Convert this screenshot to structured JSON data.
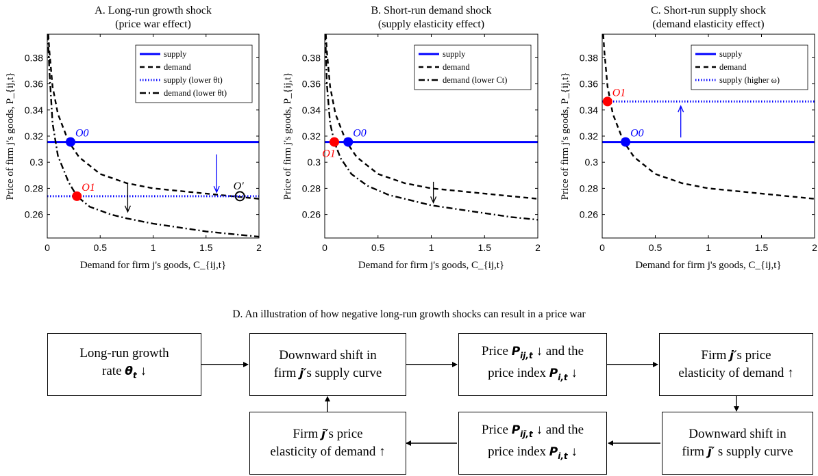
{
  "chart_data": [
    {
      "type": "line",
      "title": "A. Long-run growth shock",
      "subtitle": "(price war effect)",
      "xlabel": "Demand for firm j's goods, C_{ij,t}",
      "ylabel": "Price of firm j's goods, P_{ij,t}",
      "xlim": [
        0,
        2
      ],
      "ylim": [
        0.242,
        0.398
      ],
      "xticks": [
        "0",
        "0.5",
        "1",
        "1.5",
        "2"
      ],
      "xtick_values": [
        0,
        0.5,
        1,
        1.5,
        2
      ],
      "yticks": [
        "0.26",
        "0.28",
        "0.3",
        "0.32",
        "0.34",
        "0.36",
        "0.38"
      ],
      "ytick_values": [
        0.26,
        0.28,
        0.3,
        0.32,
        0.34,
        0.36,
        0.38
      ],
      "grid": false,
      "legend_position": "top-right",
      "series": [
        {
          "name": "supply",
          "style": "solid",
          "color": "#0000ff",
          "x": [
            0,
            2
          ],
          "y": [
            0.3155,
            0.3155
          ]
        },
        {
          "name": "demand",
          "style": "dashed",
          "color": "#000000",
          "x": [
            0.01,
            0.02,
            0.05,
            0.1,
            0.2,
            0.3,
            0.5,
            0.75,
            1.0,
            1.25,
            1.5,
            1.75,
            2.0
          ],
          "y": [
            0.398,
            0.385,
            0.358,
            0.337,
            0.316,
            0.304,
            0.291,
            0.284,
            0.28,
            0.278,
            0.276,
            0.274,
            0.272
          ]
        },
        {
          "name": "supply (lower θt)",
          "style": "dotted",
          "color": "#0000ff",
          "x": [
            0,
            2
          ],
          "y": [
            0.274,
            0.274
          ]
        },
        {
          "name": "demand (lower θt)",
          "style": "dashdot",
          "color": "#000000",
          "x": [
            0.005,
            0.02,
            0.05,
            0.1,
            0.2,
            0.28,
            0.4,
            0.6,
            0.75,
            1.0,
            1.25,
            1.5,
            1.75,
            2.0
          ],
          "y": [
            0.398,
            0.37,
            0.33,
            0.305,
            0.285,
            0.274,
            0.266,
            0.26,
            0.257,
            0.253,
            0.25,
            0.247,
            0.245,
            0.243
          ]
        }
      ],
      "points": [
        {
          "label": "O0",
          "x": 0.22,
          "y": 0.3155,
          "color": "#0000ff",
          "filled": true
        },
        {
          "label": "O1",
          "x": 0.28,
          "y": 0.274,
          "color": "#ff0000",
          "filled": true
        },
        {
          "label": "O′",
          "x": 1.82,
          "y": 0.274,
          "color": "#000000",
          "filled": false
        }
      ],
      "arrows": [
        {
          "color": "#0000ff",
          "x": 1.6,
          "y_from": 0.306,
          "y_to": 0.277
        },
        {
          "color": "#000000",
          "x": 0.76,
          "y_from": 0.284,
          "y_to": 0.262
        }
      ]
    },
    {
      "type": "line",
      "title": "B. Short-run demand shock",
      "subtitle": "(supply elasticity effect)",
      "xlabel": "Demand for firm j's goods, C_{ij,t}",
      "ylabel": "Price of firm j's goods, P_{ij,t}",
      "xlim": [
        0,
        2
      ],
      "ylim": [
        0.242,
        0.398
      ],
      "xticks": [
        "0",
        "0.5",
        "1",
        "1.5",
        "2"
      ],
      "xtick_values": [
        0,
        0.5,
        1,
        1.5,
        2
      ],
      "yticks": [
        "0.26",
        "0.28",
        "0.3",
        "0.32",
        "0.34",
        "0.36",
        "0.38"
      ],
      "ytick_values": [
        0.26,
        0.28,
        0.3,
        0.32,
        0.34,
        0.36,
        0.38
      ],
      "grid": false,
      "legend_position": "top-right",
      "series": [
        {
          "name": "supply",
          "style": "solid",
          "color": "#0000ff",
          "x": [
            0,
            2
          ],
          "y": [
            0.3155,
            0.3155
          ]
        },
        {
          "name": "demand",
          "style": "dashed",
          "color": "#000000",
          "x": [
            0.01,
            0.02,
            0.05,
            0.1,
            0.2,
            0.3,
            0.5,
            0.75,
            1.0,
            1.25,
            1.5,
            1.75,
            2.0
          ],
          "y": [
            0.398,
            0.385,
            0.358,
            0.337,
            0.316,
            0.304,
            0.291,
            0.284,
            0.28,
            0.278,
            0.276,
            0.274,
            0.272
          ]
        },
        {
          "name": "demand (lower Ct)",
          "style": "dashdot",
          "color": "#000000",
          "x": [
            0.005,
            0.02,
            0.05,
            0.09,
            0.15,
            0.25,
            0.4,
            0.6,
            0.8,
            1.0,
            1.25,
            1.5,
            1.75,
            2.0
          ],
          "y": [
            0.398,
            0.36,
            0.33,
            0.3155,
            0.303,
            0.291,
            0.282,
            0.275,
            0.271,
            0.267,
            0.264,
            0.261,
            0.258,
            0.256
          ]
        }
      ],
      "points": [
        {
          "label": "O0",
          "x": 0.22,
          "y": 0.3155,
          "color": "#0000ff",
          "filled": true
        },
        {
          "label": "O1",
          "x": 0.09,
          "y": 0.3155,
          "color": "#ff0000",
          "filled": true
        }
      ],
      "arrows": [
        {
          "color": "#000000",
          "x": 1.02,
          "y_from": 0.285,
          "y_to": 0.269
        }
      ]
    },
    {
      "type": "line",
      "title": "C. Short-run supply shock",
      "subtitle": "(demand elasticity effect)",
      "xlabel": "Demand for firm j's goods, C_{ij,t}",
      "ylabel": "Price of firm j's goods, P_{ij,t}",
      "xlim": [
        0,
        2
      ],
      "ylim": [
        0.242,
        0.398
      ],
      "xticks": [
        "0",
        "0.5",
        "1",
        "1.5",
        "2"
      ],
      "xtick_values": [
        0,
        0.5,
        1,
        1.5,
        2
      ],
      "yticks": [
        "0.26",
        "0.28",
        "0.3",
        "0.32",
        "0.34",
        "0.36",
        "0.38"
      ],
      "ytick_values": [
        0.26,
        0.28,
        0.3,
        0.32,
        0.34,
        0.36,
        0.38
      ],
      "grid": false,
      "legend_position": "top-right",
      "series": [
        {
          "name": "supply",
          "style": "solid",
          "color": "#0000ff",
          "x": [
            0,
            2
          ],
          "y": [
            0.3155,
            0.3155
          ]
        },
        {
          "name": "demand",
          "style": "dashed",
          "color": "#000000",
          "x": [
            0.01,
            0.02,
            0.05,
            0.1,
            0.2,
            0.3,
            0.5,
            0.75,
            1.0,
            1.25,
            1.5,
            1.75,
            2.0
          ],
          "y": [
            0.398,
            0.385,
            0.358,
            0.337,
            0.316,
            0.304,
            0.291,
            0.284,
            0.28,
            0.278,
            0.276,
            0.274,
            0.272
          ]
        },
        {
          "name": "supply (higher ω)",
          "style": "dotted",
          "color": "#0000ff",
          "x": [
            0,
            2
          ],
          "y": [
            0.3465,
            0.3465
          ]
        }
      ],
      "points": [
        {
          "label": "O0",
          "x": 0.22,
          "y": 0.3155,
          "color": "#0000ff",
          "filled": true
        },
        {
          "label": "O1",
          "x": 0.05,
          "y": 0.3465,
          "color": "#ff0000",
          "filled": true
        }
      ],
      "arrows": [
        {
          "color": "#0000ff",
          "x": 0.74,
          "y_from": 0.319,
          "y_to": 0.343
        }
      ]
    }
  ],
  "flowchart": {
    "title": "D. An illustration of how negative long-run growth shocks can result in a price war",
    "boxes": {
      "box1": {
        "line1": "Long-run growth",
        "line2_text": "rate ",
        "line2_sym": "θ",
        "line2_sub": "t",
        "line2_end": " ↓"
      },
      "box2": {
        "line1": "Downward shift in",
        "line2_pre": "firm ",
        "line2_sym": "j′",
        "line2_end": "s supply curve"
      },
      "box3": {
        "line1_pre": "Price ",
        "line1_sym": "P",
        "line1_sub": "ij,t",
        "line1_end": " ↓ and the",
        "line2_pre": "price index ",
        "line2_sym": "P",
        "line2_sub": "i,t",
        "line2_end": " ↓"
      },
      "box4": {
        "line1_pre": "Firm ",
        "line1_sym": "j′",
        "line1_end": "s price",
        "line2": "elasticity of demand ↑"
      },
      "box5": {
        "line1": "Downward shift in",
        "line2_pre": "firm ",
        "line2_sym": "j̄′",
        "line2_end": " s supply curve"
      },
      "box6": {
        "line1_pre": "Price ",
        "line1_sym": "P",
        "line1_sub": "ij̄,t",
        "line1_end": " ↓ and the",
        "line2_pre": "price index ",
        "line2_sym": "P",
        "line2_sub": "i,t",
        "line2_end": " ↓"
      },
      "box7": {
        "line1_pre": "Firm ",
        "line1_sym": "j̄′",
        "line1_end": "s price",
        "line2": "elasticity of demand ↑"
      }
    }
  }
}
